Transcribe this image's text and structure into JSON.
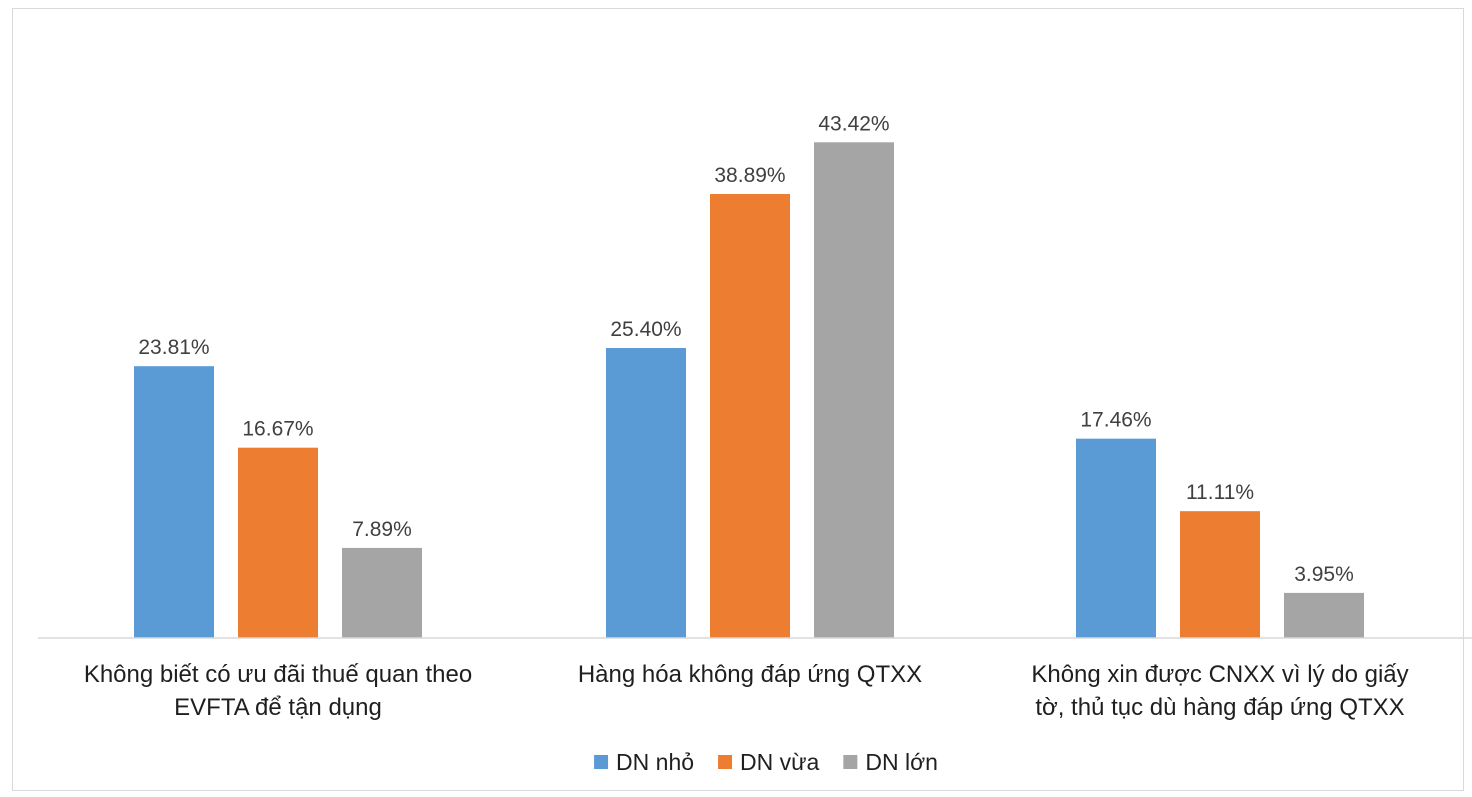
{
  "chart_data": {
    "type": "bar",
    "title": "",
    "xlabel": "",
    "ylabel": "",
    "ylim": [
      0,
      48
    ],
    "grid": false,
    "legend_position": "bottom",
    "value_format": "percent_2dp",
    "categories": [
      [
        "Không biết có ưu đãi thuế quan theo",
        "EVFTA để tận dụng"
      ],
      [
        "Hàng hóa không đáp ứng QTXX"
      ],
      [
        "Không xin được CNXX vì lý do giấy",
        "tờ, thủ tục dù hàng đáp ứng QTXX"
      ]
    ],
    "series": [
      {
        "name": "DN nhỏ",
        "color": "#5b9bd5",
        "values": [
          23.81,
          25.4,
          17.46
        ]
      },
      {
        "name": "DN vừa",
        "color": "#ed7d31",
        "values": [
          16.67,
          38.89,
          11.11
        ]
      },
      {
        "name": "DN lớn",
        "color": "#a5a5a5",
        "values": [
          7.89,
          43.42,
          3.95
        ]
      }
    ],
    "axis_color": "#d9d9d9"
  }
}
